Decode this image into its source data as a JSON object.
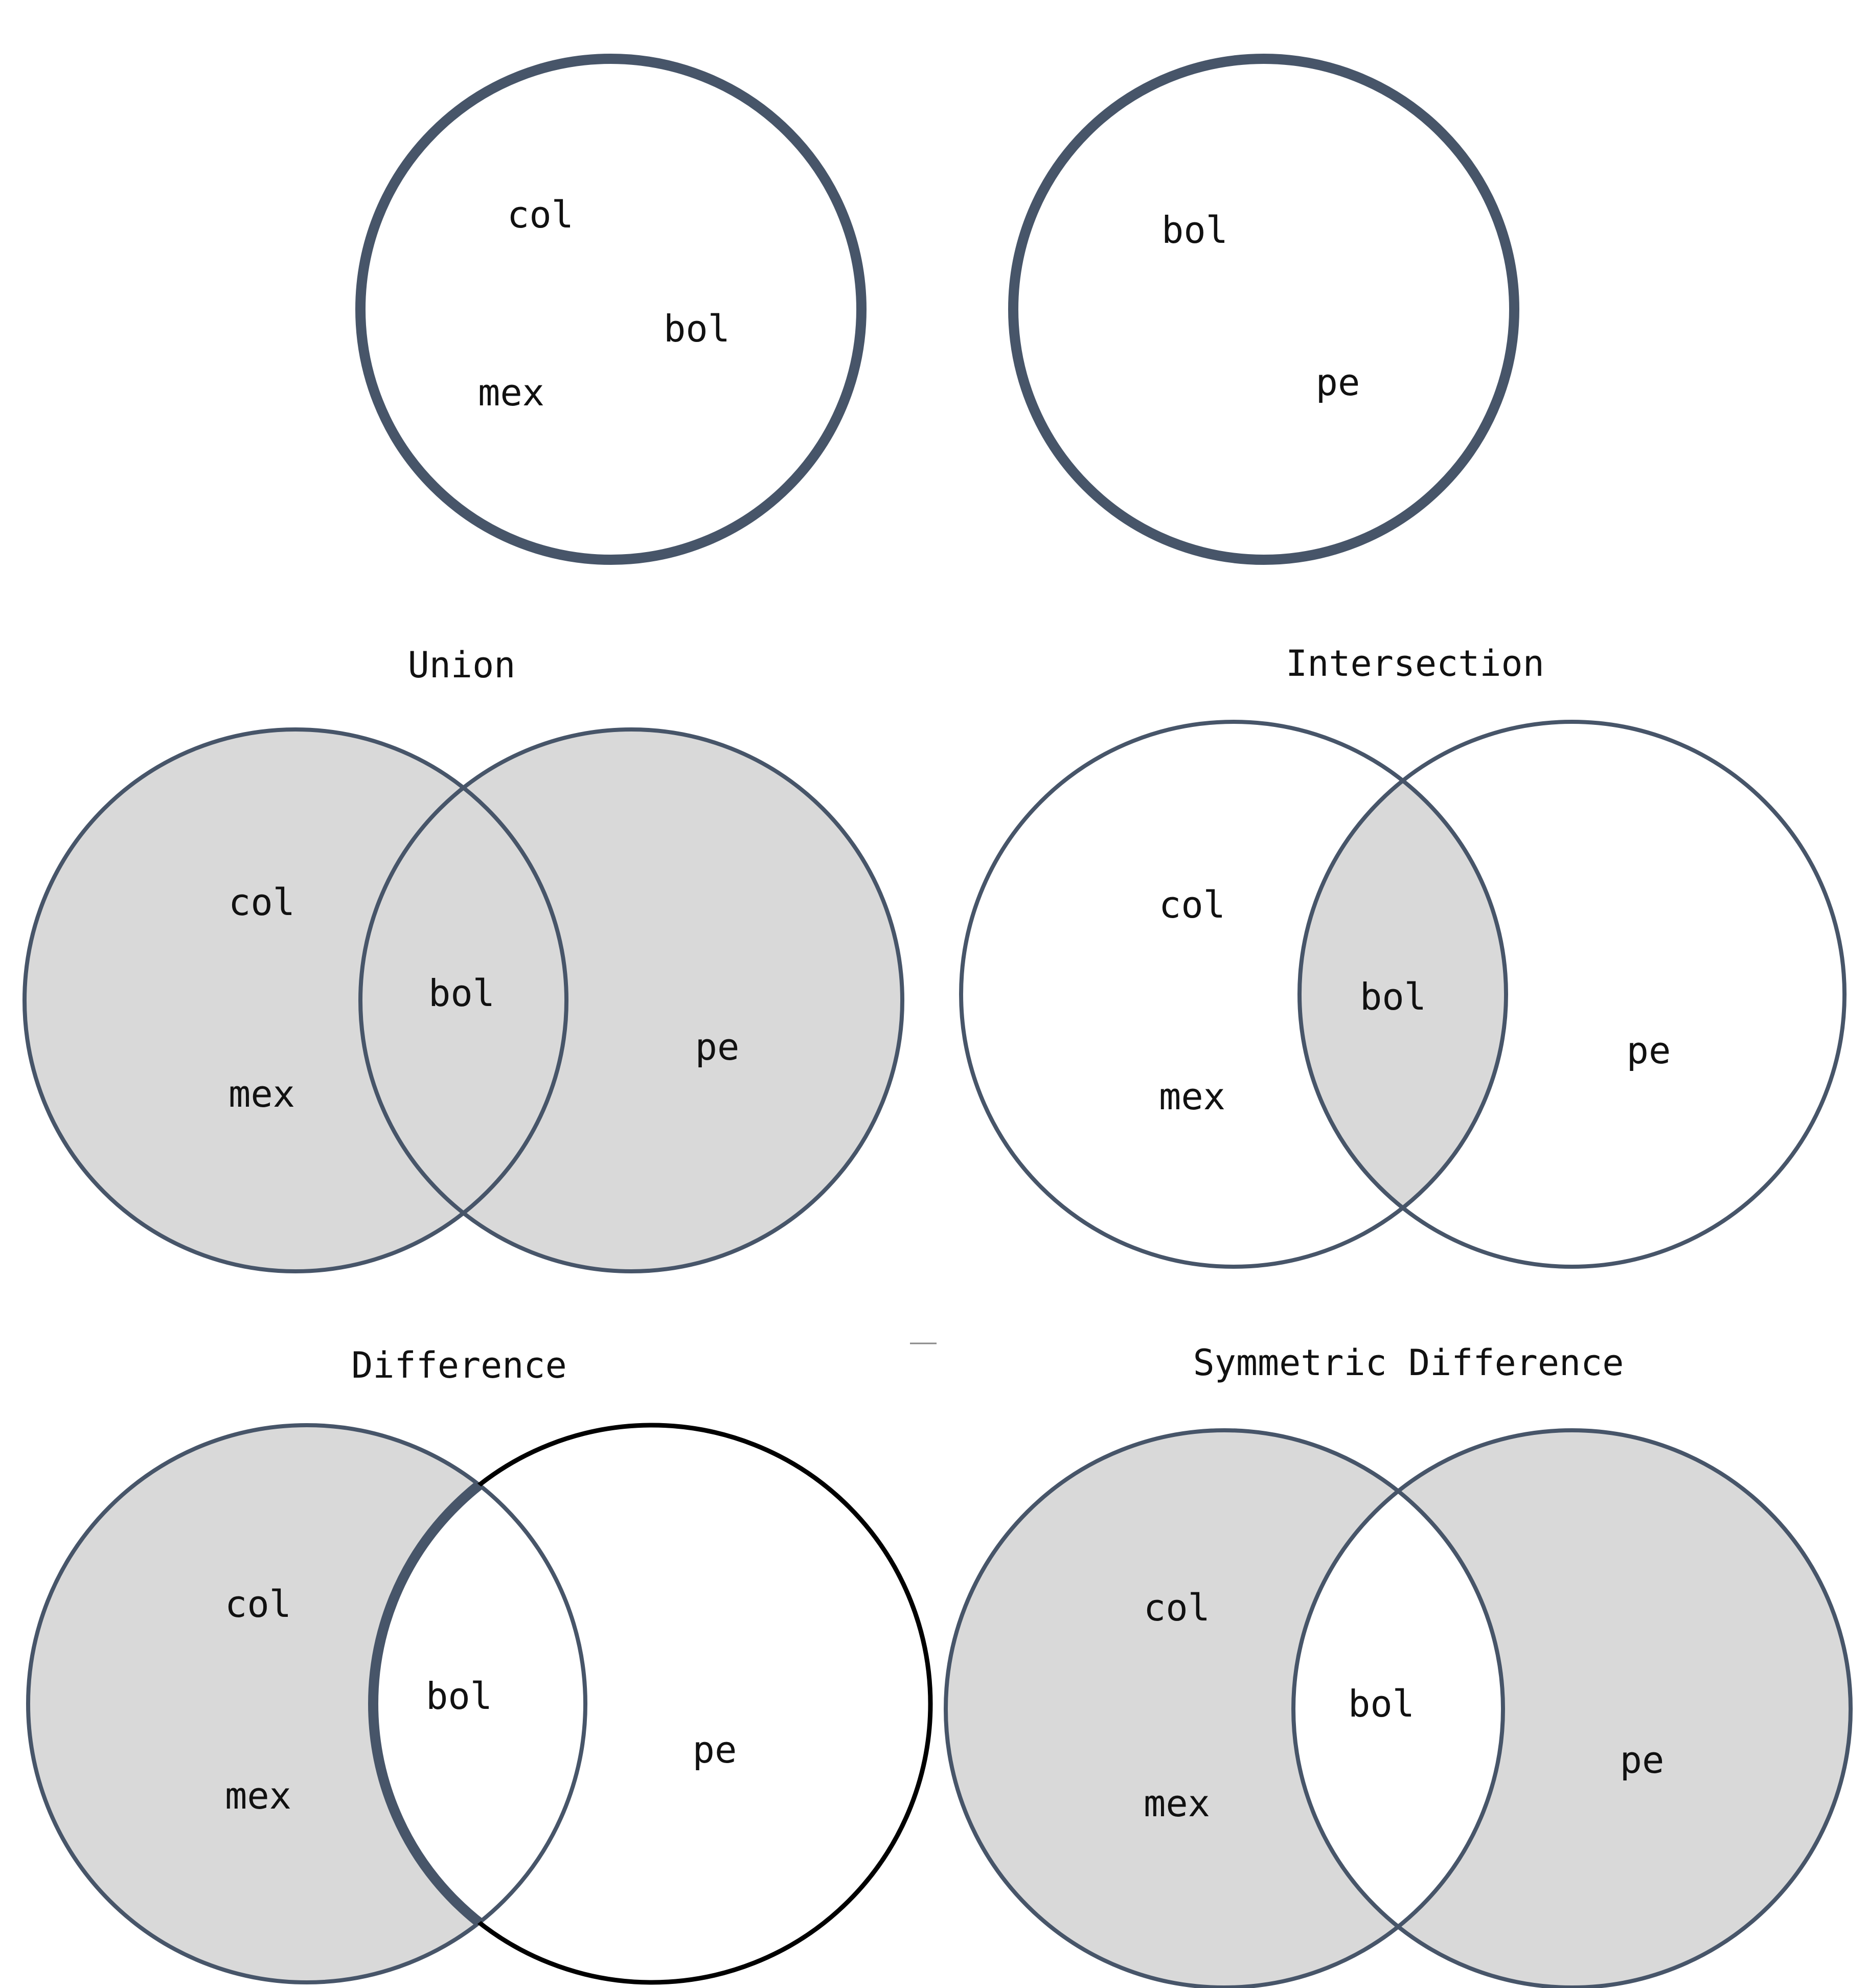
{
  "colors": {
    "stroke": "#475569",
    "fill": "#d9d9d9",
    "outline_black": "#000000",
    "background": "#ffffff"
  },
  "sets": {
    "set_a": {
      "elements": [
        "col",
        "bol",
        "mex"
      ]
    },
    "set_b": {
      "elements": [
        "bol",
        "pe"
      ]
    }
  },
  "diagrams": {
    "union": {
      "title": "Union",
      "labels": {
        "left_1": "col",
        "left_2": "mex",
        "middle": "bol",
        "right": "pe"
      }
    },
    "intersection": {
      "title": "Intersection",
      "labels": {
        "left_1": "col",
        "left_2": "mex",
        "middle": "bol",
        "right": "pe"
      }
    },
    "difference": {
      "title": "Difference",
      "labels": {
        "left_1": "col",
        "left_2": "mex",
        "middle": "bol",
        "right": "pe"
      }
    },
    "symmetric_difference": {
      "title": "Symmetric Difference",
      "labels": {
        "left_1": "col",
        "left_2": "mex",
        "middle": "bol",
        "right": "pe"
      }
    }
  }
}
